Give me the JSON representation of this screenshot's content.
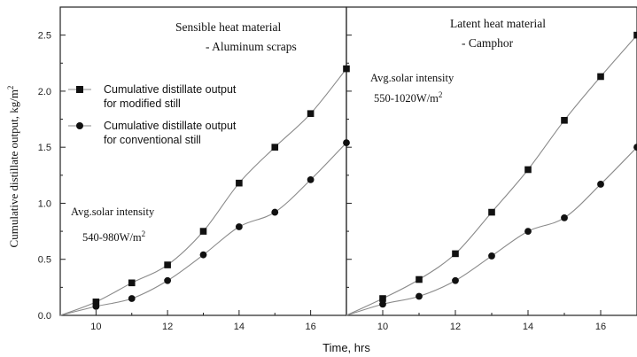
{
  "chart_data": {
    "type": "line",
    "xlabel": "Time, hrs",
    "ylabel": "Cumulative distillate output, kg/m",
    "ylabel_sup": "2",
    "xlim": [
      9,
      17
    ],
    "ylim": [
      0,
      2.75
    ],
    "x_ticks": [
      "10",
      "12",
      "14",
      "16"
    ],
    "y_ticks": [
      "0.0",
      "0.5",
      "1.0",
      "1.5",
      "2.0",
      "2.5"
    ],
    "legend": {
      "position": "upper-left of left panel",
      "entries": [
        {
          "marker": "square",
          "line1": "Cumulative distillate output",
          "line2": "for modified still"
        },
        {
          "marker": "circle",
          "line1": "Cumulative distillate output",
          "line2": "for conventional still"
        }
      ]
    },
    "panels": [
      {
        "title_line1": "Sensible heat material",
        "title_line2": "- Aluminum scraps",
        "annotation_line1": "Avg.solar intensity",
        "annotation_line2": "540-980W/m",
        "annotation_sup": "2",
        "series": [
          {
            "marker": "square",
            "x": [
              9,
              10,
              11,
              12,
              13,
              14,
              15,
              16,
              17
            ],
            "y": [
              0.0,
              0.12,
              0.29,
              0.45,
              0.75,
              1.18,
              1.5,
              1.8,
              2.2
            ]
          },
          {
            "marker": "circle",
            "x": [
              9,
              10,
              11,
              12,
              13,
              14,
              15,
              16,
              17
            ],
            "y": [
              0.0,
              0.08,
              0.15,
              0.31,
              0.54,
              0.79,
              0.92,
              1.21,
              1.54
            ]
          }
        ]
      },
      {
        "title_line1": "Latent heat material",
        "title_line2": "- Camphor",
        "annotation_line1": "Avg.solar intensity",
        "annotation_line2": "550-1020W/m",
        "annotation_sup": "2",
        "series": [
          {
            "marker": "square",
            "x": [
              9,
              10,
              11,
              12,
              13,
              14,
              15,
              16,
              17
            ],
            "y": [
              0.0,
              0.15,
              0.32,
              0.55,
              0.92,
              1.3,
              1.74,
              2.13,
              2.5
            ]
          },
          {
            "marker": "circle",
            "x": [
              9,
              10,
              11,
              12,
              13,
              14,
              15,
              16,
              17
            ],
            "y": [
              0.0,
              0.1,
              0.17,
              0.31,
              0.53,
              0.75,
              0.87,
              1.17,
              1.5
            ]
          }
        ]
      }
    ]
  }
}
